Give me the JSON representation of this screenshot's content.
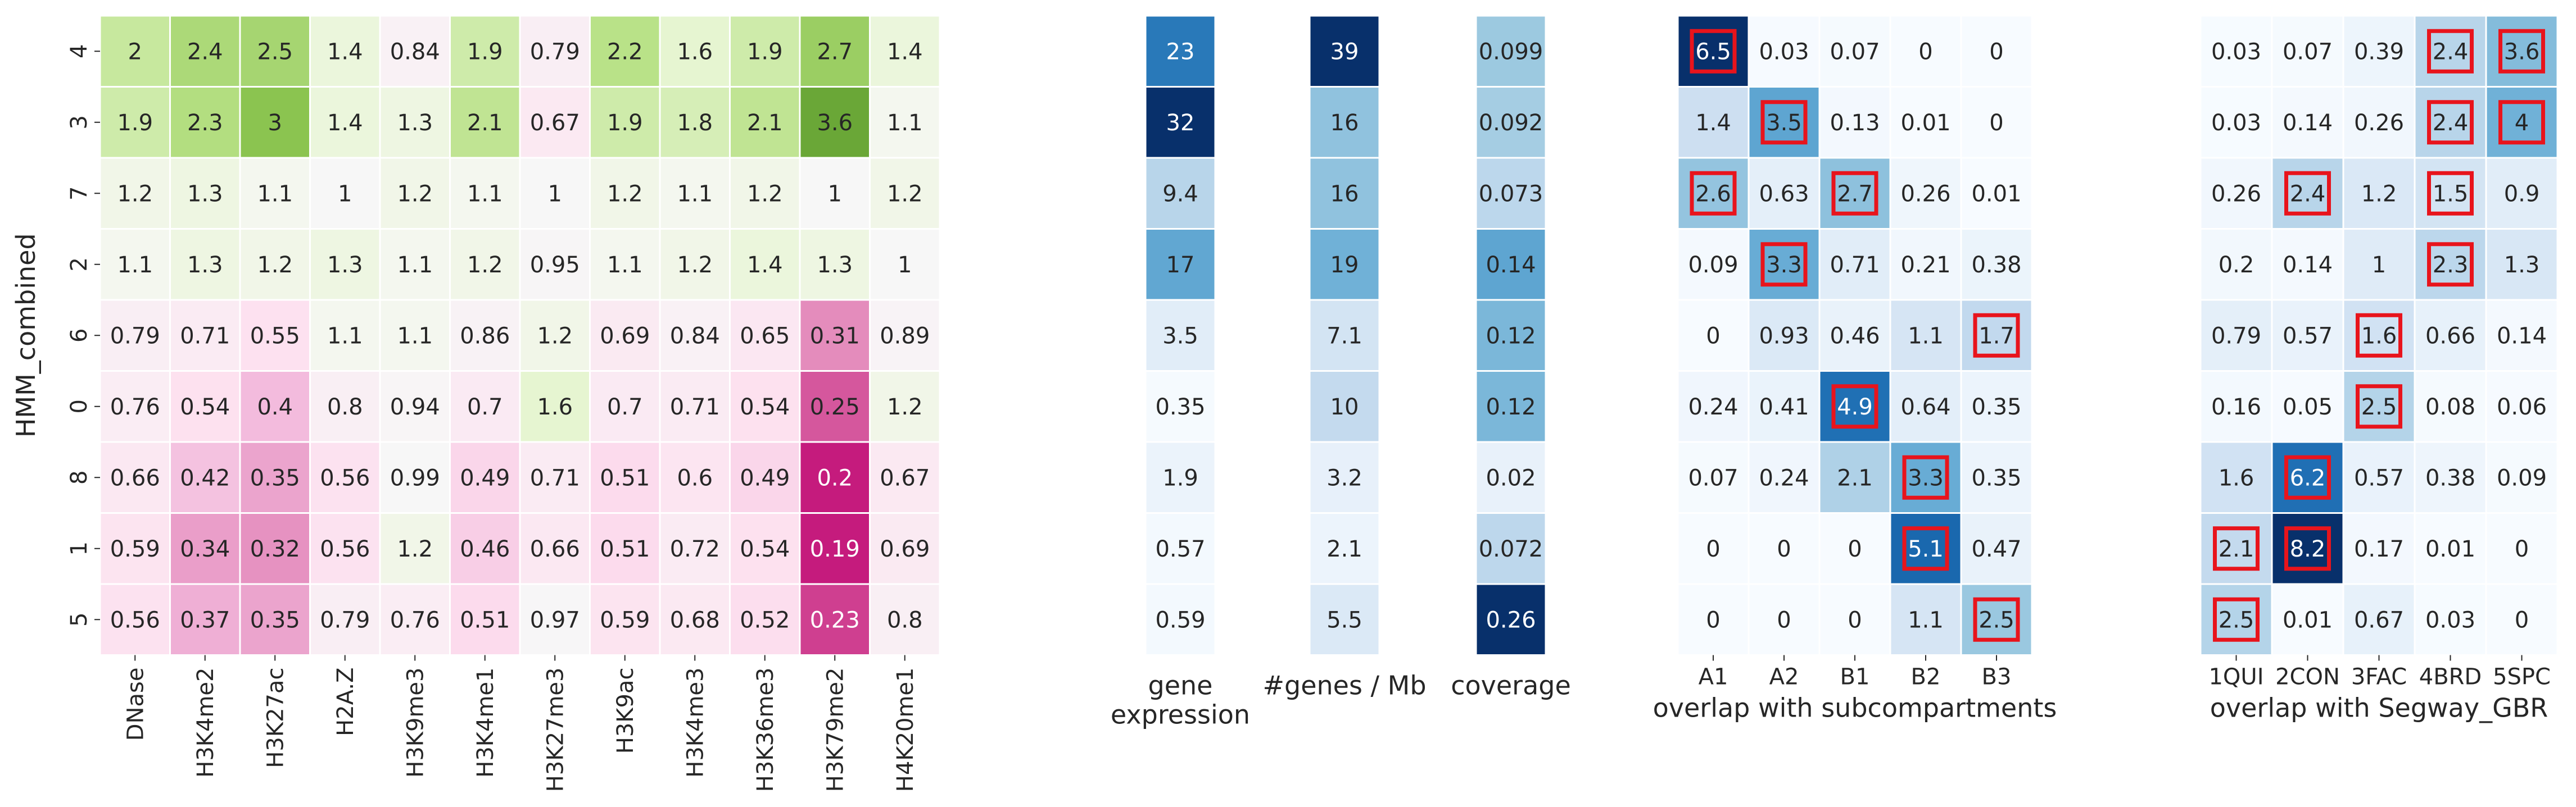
{
  "chart_data": [
    {
      "type": "heatmap",
      "title": "",
      "ylabel": "HMM_combined",
      "xlabel": "",
      "colormap": "PiYG",
      "rows": [
        "4",
        "3",
        "7",
        "2",
        "6",
        "0",
        "8",
        "1",
        "5"
      ],
      "columns": [
        "DNase",
        "H3K4me2",
        "H3K27ac",
        "H2A.Z",
        "H3K9me3",
        "H3K4me1",
        "H3K27me3",
        "H3K9ac",
        "H3K4me3",
        "H3K36me3",
        "H3K79me2",
        "H4K20me1"
      ],
      "values": [
        [
          2,
          2.4,
          2.5,
          1.4,
          0.84,
          1.9,
          0.79,
          2.2,
          1.6,
          1.9,
          2.7,
          1.4
        ],
        [
          1.9,
          2.3,
          3,
          1.4,
          1.3,
          2.1,
          0.67,
          1.9,
          1.8,
          2.1,
          3.6,
          1.1
        ],
        [
          1.2,
          1.3,
          1.1,
          1,
          1.2,
          1.1,
          1,
          1.2,
          1.1,
          1.2,
          1,
          1.2
        ],
        [
          1.1,
          1.3,
          1.2,
          1.3,
          1.1,
          1.2,
          0.95,
          1.1,
          1.2,
          1.4,
          1.3,
          1
        ],
        [
          0.79,
          0.71,
          0.55,
          1.1,
          1.1,
          0.86,
          1.2,
          0.69,
          0.84,
          0.65,
          0.31,
          0.89
        ],
        [
          0.76,
          0.54,
          0.4,
          0.8,
          0.94,
          0.7,
          1.6,
          0.7,
          0.71,
          0.54,
          0.25,
          1.2
        ],
        [
          0.66,
          0.42,
          0.35,
          0.56,
          0.99,
          0.49,
          0.71,
          0.51,
          0.6,
          0.49,
          0.2,
          0.67
        ],
        [
          0.59,
          0.34,
          0.32,
          0.56,
          1.2,
          0.46,
          0.66,
          0.51,
          0.72,
          0.54,
          0.19,
          0.69
        ],
        [
          0.56,
          0.37,
          0.35,
          0.79,
          0.76,
          0.51,
          0.97,
          0.59,
          0.68,
          0.52,
          0.23,
          0.8
        ]
      ]
    },
    {
      "type": "heatmap",
      "xlabel": "gene\nexpression",
      "colormap": "Blues",
      "rows": [
        "4",
        "3",
        "7",
        "2",
        "6",
        "0",
        "8",
        "1",
        "5"
      ],
      "values": [
        23,
        32,
        9.4,
        17,
        3.5,
        0.35,
        1.9,
        0.57,
        0.59
      ]
    },
    {
      "type": "heatmap",
      "xlabel": "#genes / Mb",
      "colormap": "Blues",
      "rows": [
        "4",
        "3",
        "7",
        "2",
        "6",
        "0",
        "8",
        "1",
        "5"
      ],
      "values": [
        39,
        16,
        16,
        19,
        7.1,
        10,
        3.2,
        2.1,
        5.5
      ]
    },
    {
      "type": "heatmap",
      "xlabel": "coverage",
      "colormap": "Blues",
      "rows": [
        "4",
        "3",
        "7",
        "2",
        "6",
        "0",
        "8",
        "1",
        "5"
      ],
      "values": [
        0.099,
        0.092,
        0.073,
        0.14,
        0.12,
        0.12,
        0.02,
        0.072,
        0.26
      ]
    },
    {
      "type": "heatmap",
      "xlabel": "overlap with subcompartments",
      "colormap": "Blues",
      "rows": [
        "4",
        "3",
        "7",
        "2",
        "6",
        "0",
        "8",
        "1",
        "5"
      ],
      "columns": [
        "A1",
        "A2",
        "B1",
        "B2",
        "B3"
      ],
      "values": [
        [
          6.5,
          0.03,
          0.07,
          0,
          0
        ],
        [
          1.4,
          3.5,
          0.13,
          0.01,
          0
        ],
        [
          2.6,
          0.63,
          2.7,
          0.26,
          0.01
        ],
        [
          0.09,
          3.3,
          0.71,
          0.21,
          0.38
        ],
        [
          0,
          0.93,
          0.46,
          1.1,
          1.7
        ],
        [
          0.24,
          0.41,
          4.9,
          0.64,
          0.35
        ],
        [
          0.07,
          0.24,
          2.1,
          3.3,
          0.35
        ],
        [
          0,
          0,
          0,
          5.1,
          0.47
        ],
        [
          0,
          0,
          0,
          1.1,
          2.5
        ]
      ],
      "highlighted": [
        [
          0,
          0
        ],
        [
          1,
          1
        ],
        [
          2,
          0
        ],
        [
          2,
          2
        ],
        [
          3,
          1
        ],
        [
          4,
          4
        ],
        [
          5,
          2
        ],
        [
          6,
          3
        ],
        [
          7,
          3
        ],
        [
          8,
          4
        ]
      ],
      "highlight_color": "#e8141c"
    },
    {
      "type": "heatmap",
      "xlabel": "overlap with Segway_GBR",
      "colormap": "Blues",
      "rows": [
        "4",
        "3",
        "7",
        "2",
        "6",
        "0",
        "8",
        "1",
        "5"
      ],
      "columns": [
        "1QUI",
        "2CON",
        "3FAC",
        "4BRD",
        "5SPC"
      ],
      "values": [
        [
          0.03,
          0.07,
          0.39,
          2.4,
          3.6
        ],
        [
          0.03,
          0.14,
          0.26,
          2.4,
          4
        ],
        [
          0.26,
          2.4,
          1.2,
          1.5,
          0.9
        ],
        [
          0.2,
          0.14,
          1,
          2.3,
          1.3
        ],
        [
          0.79,
          0.57,
          1.6,
          0.66,
          0.14
        ],
        [
          0.16,
          0.05,
          2.5,
          0.08,
          0.06
        ],
        [
          1.6,
          6.2,
          0.57,
          0.38,
          0.09
        ],
        [
          2.1,
          8.2,
          0.17,
          0.01,
          0
        ],
        [
          2.5,
          0.01,
          0.67,
          0.03,
          0
        ]
      ],
      "highlighted": [
        [
          0,
          3
        ],
        [
          0,
          4
        ],
        [
          1,
          3
        ],
        [
          1,
          4
        ],
        [
          2,
          1
        ],
        [
          2,
          3
        ],
        [
          3,
          3
        ],
        [
          4,
          2
        ],
        [
          5,
          2
        ],
        [
          6,
          1
        ],
        [
          7,
          0
        ],
        [
          7,
          1
        ],
        [
          8,
          0
        ]
      ],
      "highlight_color": "#e8141c"
    }
  ]
}
